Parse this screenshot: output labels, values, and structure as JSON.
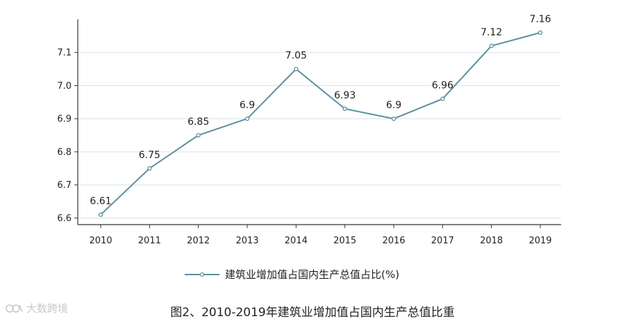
{
  "chart_data": {
    "type": "line",
    "x": [
      "2010",
      "2011",
      "2012",
      "2013",
      "2014",
      "2015",
      "2016",
      "2017",
      "2018",
      "2019"
    ],
    "series": [
      {
        "name": "建筑业增加值占国内生产总值占比(%)",
        "values": [
          6.61,
          6.75,
          6.85,
          6.9,
          7.05,
          6.93,
          6.9,
          6.96,
          7.12,
          7.16
        ],
        "labels": [
          "6.61",
          "6.75",
          "6.85",
          "6.9",
          "7.05",
          "6.93",
          "6.9",
          "6.96",
          "7.12",
          "7.16"
        ]
      }
    ],
    "yticks": [
      "6.6",
      "6.7",
      "6.8",
      "6.9",
      "7.0",
      "7.1"
    ],
    "ylim": [
      6.58,
      7.2
    ],
    "grid": true,
    "legend_position": "bottom",
    "title": "",
    "xlabel": "",
    "ylabel": ""
  },
  "caption": "图2、2010-2019年建筑业增加值占国内生产总值比重",
  "watermark": "大数跨境",
  "colors": {
    "line": "#5a8fa0",
    "grid": "#d8e3e6",
    "axis": "#333333"
  }
}
